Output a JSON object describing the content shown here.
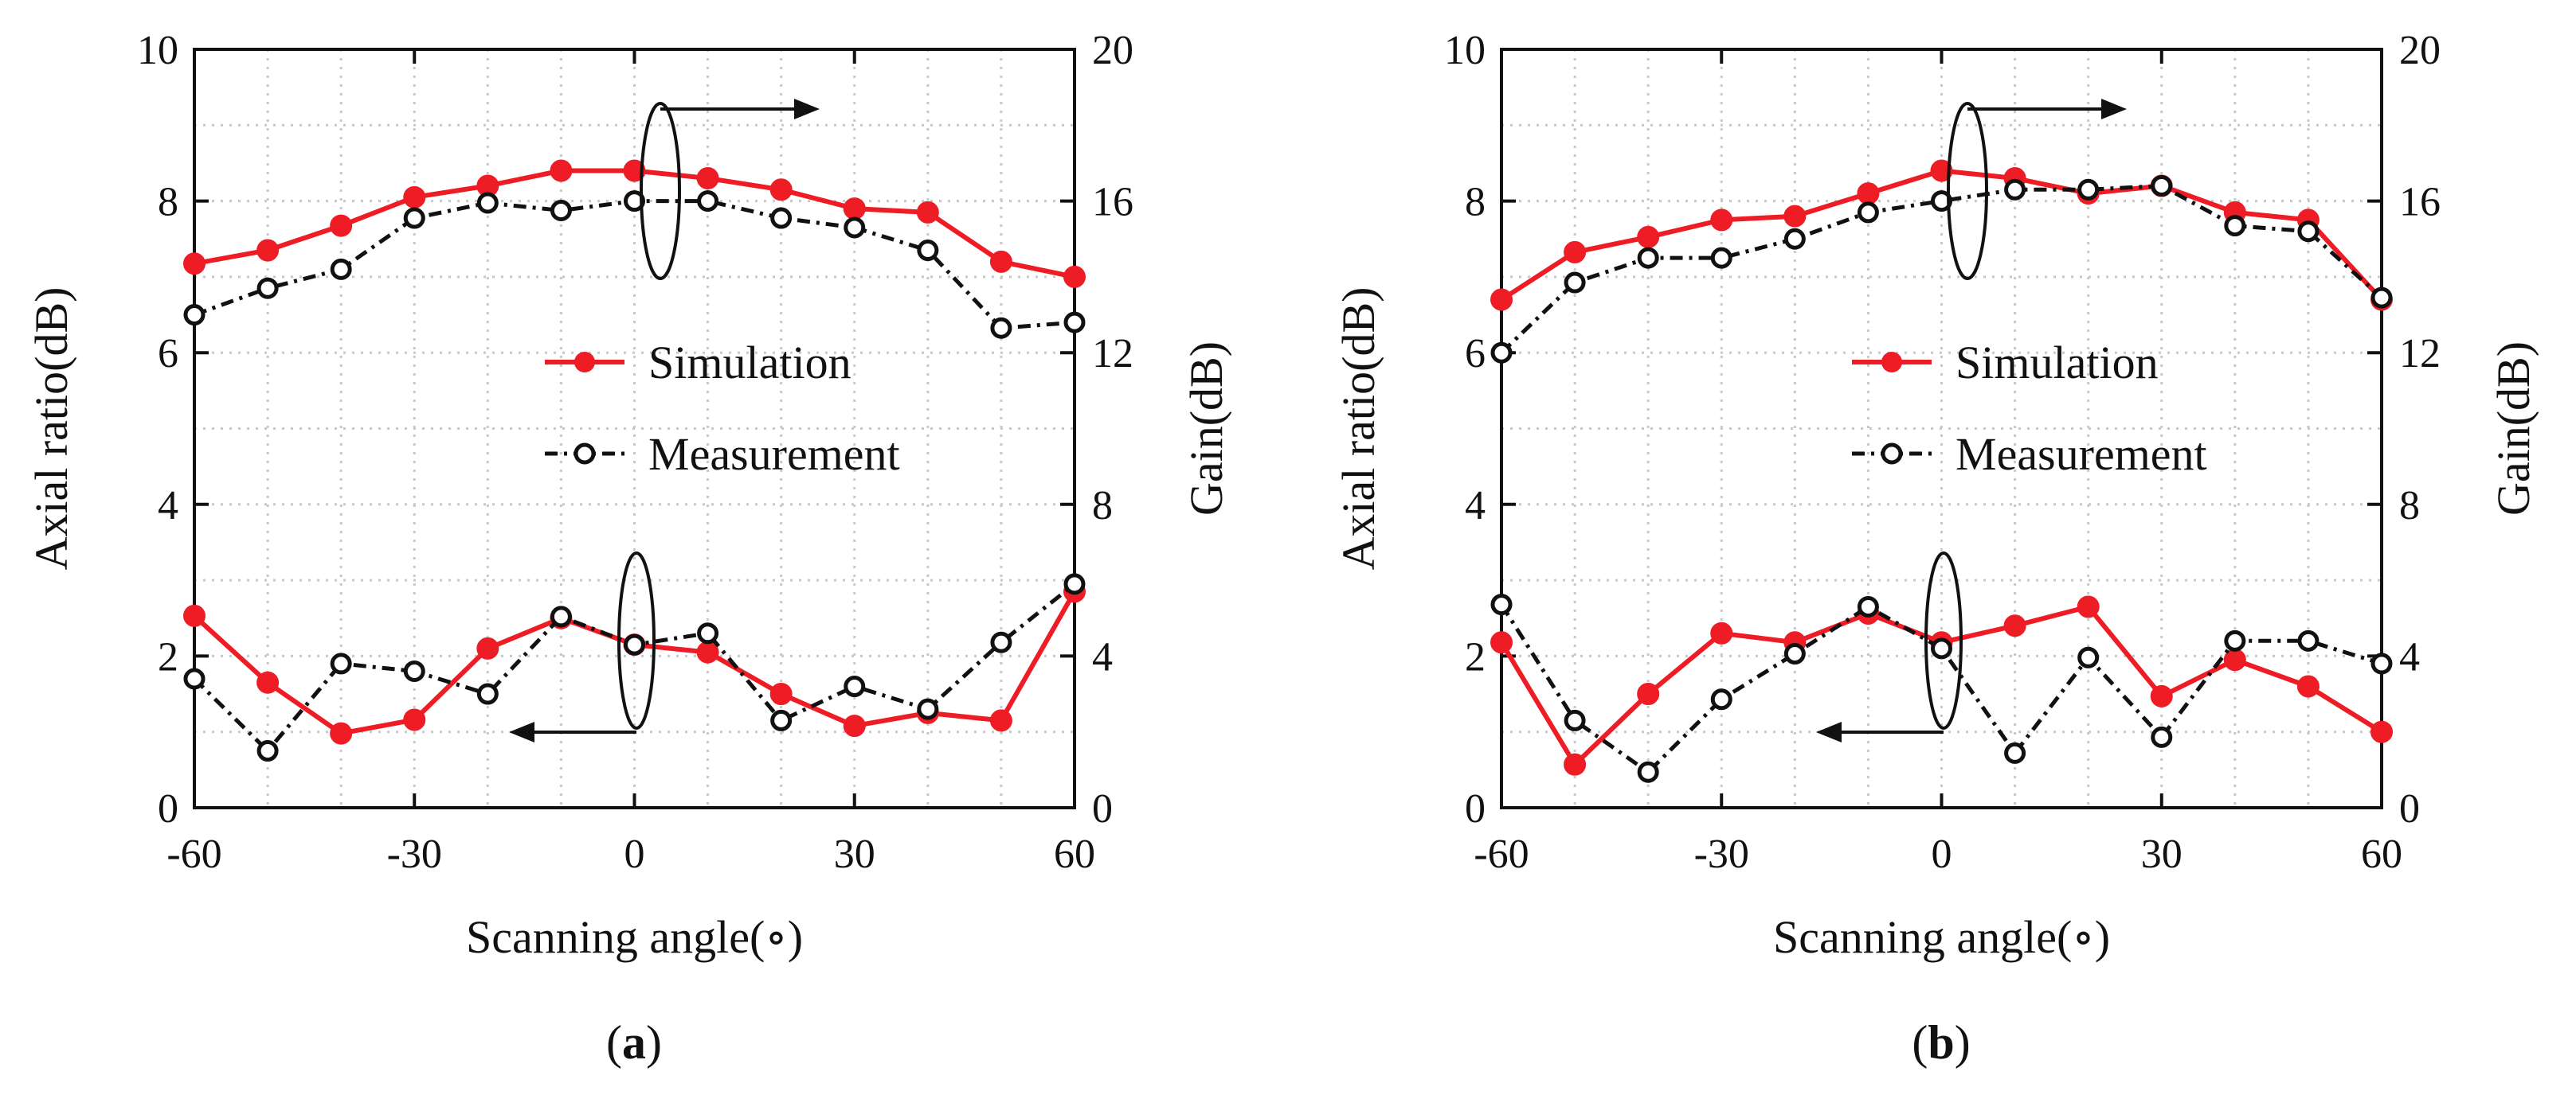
{
  "colors": {
    "simulation": "#ee1c25",
    "measurement": "#111111",
    "grid": "#c8c8c8",
    "axis": "#111111"
  },
  "chart_data": [
    {
      "type": "line",
      "caption_letter": "a",
      "xlabel": "Scanning angle(∘)",
      "ylabel_left": "Axial ratio(dB)",
      "ylabel_right": "Gain(dB)",
      "xlim": [
        -60,
        60
      ],
      "ylim_left": [
        0,
        10
      ],
      "ylim_right": [
        0,
        20
      ],
      "x_ticks": [
        "-60",
        "-30",
        "0",
        "30",
        "60"
      ],
      "y_left_ticks": [
        "0",
        "2",
        "4",
        "6",
        "8",
        "10"
      ],
      "y_right_ticks": [
        "0",
        "4",
        "8",
        "12",
        "16",
        "20"
      ],
      "grid": true,
      "legend": [
        "Simulation",
        "Measurement"
      ],
      "x": [
        -60,
        -50,
        -40,
        -30,
        -20,
        -10,
        0,
        10,
        20,
        30,
        40,
        50,
        60
      ],
      "series": [
        {
          "name": "Simulation",
          "quantity": "Gain",
          "axis": "right",
          "values": [
            14.35,
            14.7,
            15.35,
            16.1,
            16.4,
            16.8,
            16.8,
            16.6,
            16.3,
            15.8,
            15.7,
            14.4,
            14.0
          ]
        },
        {
          "name": "Measurement",
          "quantity": "Gain",
          "axis": "right",
          "values": [
            13.0,
            13.7,
            14.2,
            15.55,
            15.95,
            15.75,
            16.0,
            16.0,
            15.55,
            15.3,
            14.7,
            12.65,
            12.8
          ]
        },
        {
          "name": "Simulation",
          "quantity": "Axial ratio",
          "axis": "left",
          "values": [
            2.53,
            1.65,
            0.98,
            1.16,
            2.1,
            2.5,
            2.15,
            2.05,
            1.5,
            1.08,
            1.25,
            1.15,
            2.85
          ]
        },
        {
          "name": "Measurement",
          "quantity": "Axial ratio",
          "axis": "left",
          "values": [
            1.7,
            0.75,
            1.9,
            1.8,
            1.5,
            2.52,
            2.15,
            2.3,
            1.15,
            1.6,
            1.3,
            2.18,
            2.95
          ]
        }
      ]
    },
    {
      "type": "line",
      "caption_letter": "b",
      "xlabel": "Scanning angle(∘)",
      "ylabel_left": "Axial ratio(dB)",
      "ylabel_right": "Gain(dB)",
      "xlim": [
        -60,
        60
      ],
      "ylim_left": [
        0,
        10
      ],
      "ylim_right": [
        0,
        20
      ],
      "x_ticks": [
        "-60",
        "-30",
        "0",
        "30",
        "60"
      ],
      "y_left_ticks": [
        "0",
        "2",
        "4",
        "6",
        "8",
        "10"
      ],
      "y_right_ticks": [
        "0",
        "4",
        "8",
        "12",
        "16",
        "20"
      ],
      "grid": true,
      "legend": [
        "Simulation",
        "Measurement"
      ],
      "x": [
        -60,
        -50,
        -40,
        -30,
        -20,
        -10,
        0,
        10,
        20,
        30,
        40,
        50,
        60
      ],
      "series": [
        {
          "name": "Simulation",
          "quantity": "Gain",
          "axis": "right",
          "values": [
            13.4,
            14.65,
            15.05,
            15.5,
            15.6,
            16.2,
            16.8,
            16.6,
            16.2,
            16.4,
            15.7,
            15.5,
            13.4
          ]
        },
        {
          "name": "Measurement",
          "quantity": "Gain",
          "axis": "right",
          "values": [
            12.0,
            13.85,
            14.5,
            14.5,
            15.0,
            15.7,
            16.0,
            16.3,
            16.3,
            16.4,
            15.35,
            15.2,
            13.45
          ]
        },
        {
          "name": "Simulation",
          "quantity": "Axial ratio",
          "axis": "left",
          "values": [
            2.18,
            0.57,
            1.5,
            2.3,
            2.18,
            2.56,
            2.18,
            2.4,
            2.65,
            1.47,
            1.95,
            1.6,
            1.0
          ]
        },
        {
          "name": "Measurement",
          "quantity": "Axial ratio",
          "axis": "left",
          "values": [
            2.68,
            1.15,
            0.47,
            1.43,
            2.03,
            2.65,
            2.1,
            0.72,
            1.98,
            0.93,
            2.2,
            2.2,
            1.9
          ]
        }
      ]
    }
  ]
}
